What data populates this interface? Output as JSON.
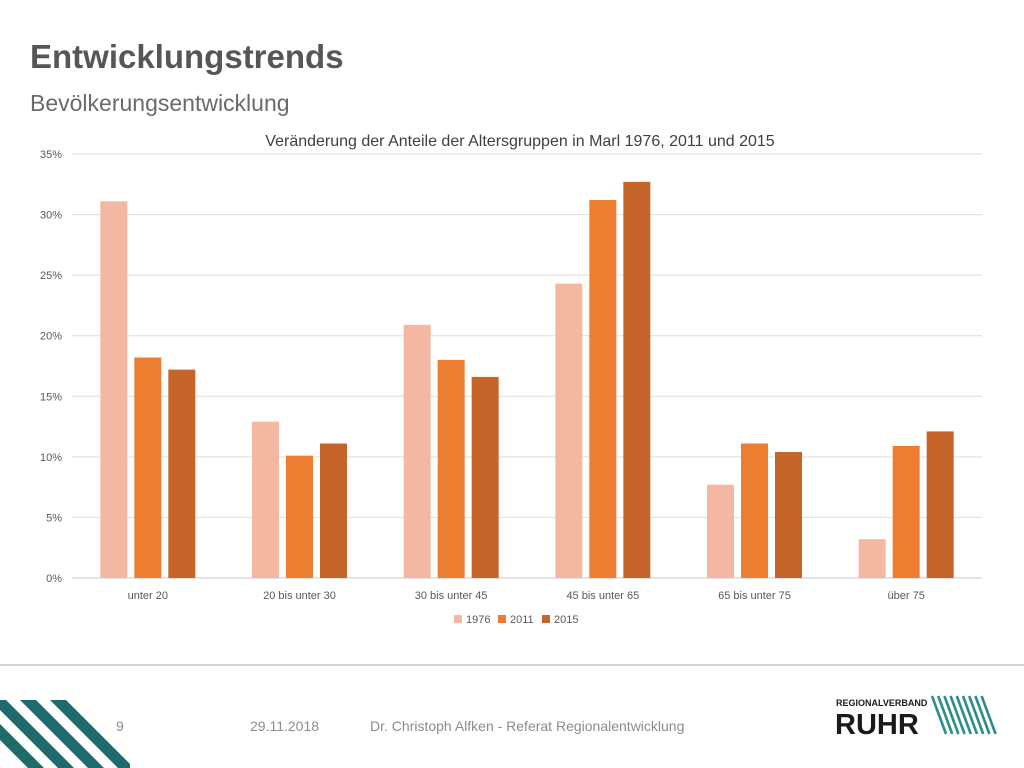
{
  "slide": {
    "title": "Entwicklungstrends",
    "subtitle": "Bevölkerungsentwicklung"
  },
  "chart_data": {
    "type": "bar",
    "title": "Veränderung der Anteile der Altersgruppen in Marl 1976, 2011 und 2015",
    "categories": [
      "unter 20",
      "20 bis unter 30",
      "30 bis unter 45",
      "45 bis unter 65",
      "65 bis unter 75",
      "über 75"
    ],
    "series": [
      {
        "name": "1976",
        "color": "#f4b8a2",
        "values": [
          31.1,
          12.9,
          20.9,
          24.3,
          7.7,
          3.2
        ]
      },
      {
        "name": "2011",
        "color": "#ed7d31",
        "values": [
          18.2,
          10.1,
          18.0,
          31.2,
          11.1,
          10.9
        ]
      },
      {
        "name": "2015",
        "color": "#c5652a",
        "values": [
          17.2,
          11.1,
          16.6,
          32.7,
          10.4,
          12.1
        ]
      }
    ],
    "ylim": [
      0,
      35
    ],
    "yticks": [
      0,
      5,
      10,
      15,
      20,
      25,
      30,
      35
    ],
    "ytick_labels": [
      "0%",
      "5%",
      "10%",
      "15%",
      "20%",
      "25%",
      "30%",
      "35%"
    ],
    "grid": true,
    "legend_position": "bottom"
  },
  "footer": {
    "page_number": "9",
    "date": "29.11.2018",
    "author": "Dr. Christoph Alfken - Referat Regionalentwicklung"
  },
  "logo": {
    "line1": "REGIONALVERBAND",
    "line2": "RUHR",
    "color": "#1a1a1a",
    "stripe_color": "#2e8d8a"
  },
  "decoration": {
    "stripe_color": "#1f6a6a"
  }
}
